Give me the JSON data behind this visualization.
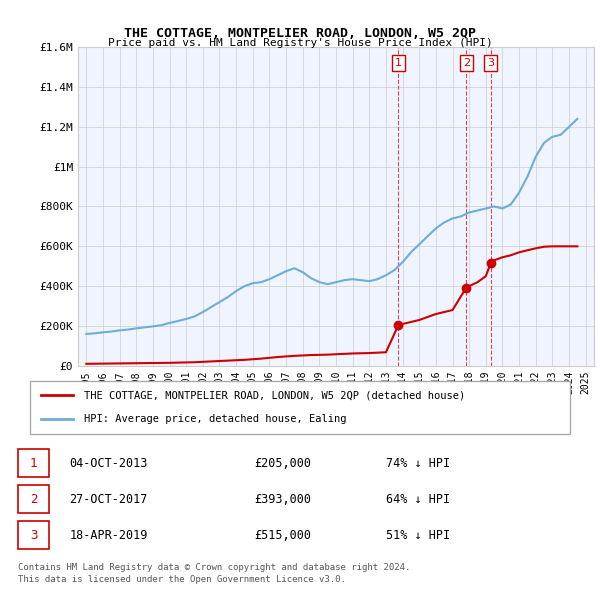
{
  "title": "THE COTTAGE, MONTPELIER ROAD, LONDON, W5 2QP",
  "subtitle": "Price paid vs. HM Land Registry's House Price Index (HPI)",
  "legend_line1": "THE COTTAGE, MONTPELIER ROAD, LONDON, W5 2QP (detached house)",
  "legend_line2": "HPI: Average price, detached house, Ealing",
  "footer1": "Contains HM Land Registry data © Crown copyright and database right 2024.",
  "footer2": "This data is licensed under the Open Government Licence v3.0.",
  "transactions": [
    {
      "num": "1",
      "date": "04-OCT-2013",
      "price": "£205,000",
      "pct": "74% ↓ HPI"
    },
    {
      "num": "2",
      "date": "27-OCT-2017",
      "price": "£393,000",
      "pct": "64% ↓ HPI"
    },
    {
      "num": "3",
      "date": "18-APR-2019",
      "price": "£515,000",
      "pct": "51% ↓ HPI"
    }
  ],
  "sale_years": [
    2013.75,
    2017.83,
    2019.29
  ],
  "sale_prices": [
    205000,
    393000,
    515000
  ],
  "hpi_color": "#6baed6",
  "price_color": "#cc0000",
  "vline_color": "#cc0000",
  "background_color": "#ffffff",
  "plot_bg_color": "#f0f4ff",
  "grid_color": "#cccccc",
  "hpi_x": [
    1995,
    1995.5,
    1996,
    1996.5,
    1997,
    1997.5,
    1998,
    1998.5,
    1999,
    1999.5,
    2000,
    2000.5,
    2001,
    2001.5,
    2002,
    2002.5,
    2003,
    2003.5,
    2004,
    2004.5,
    2005,
    2005.5,
    2006,
    2006.5,
    2007,
    2007.5,
    2008,
    2008.5,
    2009,
    2009.5,
    2010,
    2010.5,
    2011,
    2011.5,
    2012,
    2012.5,
    2013,
    2013.5,
    2014,
    2014.5,
    2015,
    2015.5,
    2016,
    2016.5,
    2017,
    2017.5,
    2018,
    2018.5,
    2019,
    2019.5,
    2020,
    2020.5,
    2021,
    2021.5,
    2022,
    2022.5,
    2023,
    2023.5,
    2024,
    2024.5
  ],
  "hpi_y": [
    160000,
    163000,
    168000,
    172000,
    178000,
    182000,
    188000,
    193000,
    198000,
    204000,
    215000,
    225000,
    235000,
    248000,
    270000,
    295000,
    320000,
    345000,
    375000,
    400000,
    415000,
    420000,
    435000,
    455000,
    475000,
    490000,
    470000,
    440000,
    420000,
    410000,
    420000,
    430000,
    435000,
    430000,
    425000,
    435000,
    455000,
    480000,
    520000,
    570000,
    610000,
    650000,
    690000,
    720000,
    740000,
    750000,
    770000,
    780000,
    790000,
    800000,
    790000,
    810000,
    870000,
    950000,
    1050000,
    1120000,
    1150000,
    1160000,
    1200000,
    1240000
  ],
  "price_x": [
    1995,
    1995.5,
    1996,
    1996.5,
    1997,
    1997.5,
    1998,
    1998.5,
    1999,
    1999.5,
    2000,
    2000.5,
    2001,
    2001.5,
    2002,
    2002.5,
    2003,
    2003.5,
    2004,
    2004.5,
    2005,
    2005.5,
    2006,
    2006.5,
    2007,
    2007.5,
    2008,
    2008.5,
    2009,
    2009.5,
    2010,
    2010.5,
    2011,
    2011.5,
    2012,
    2012.5,
    2013,
    2013.75,
    2013.75,
    2014,
    2014.5,
    2015,
    2015.5,
    2016,
    2016.5,
    2017,
    2017.83,
    2017.83,
    2018,
    2018.5,
    2019,
    2019.29,
    2019.29,
    2019.5,
    2020,
    2020.5,
    2021,
    2021.5,
    2022,
    2022.5,
    2023,
    2023.5,
    2024,
    2024.5
  ],
  "price_y": [
    10000,
    10500,
    11000,
    11500,
    12000,
    12500,
    13000,
    13500,
    14000,
    14500,
    15000,
    16000,
    17000,
    18000,
    20000,
    22000,
    24000,
    26000,
    28000,
    30000,
    33000,
    36000,
    40000,
    44000,
    47000,
    50000,
    52000,
    54000,
    55000,
    56000,
    58000,
    60000,
    62000,
    63000,
    64000,
    66000,
    68000,
    205000,
    205000,
    210000,
    220000,
    230000,
    245000,
    260000,
    270000,
    280000,
    393000,
    393000,
    400000,
    420000,
    450000,
    515000,
    515000,
    530000,
    545000,
    555000,
    570000,
    580000,
    590000,
    598000,
    600000,
    600000,
    600000,
    600000
  ],
  "ylim": [
    0,
    1600000
  ],
  "xlim": [
    1994.5,
    2025.5
  ],
  "yticks": [
    0,
    200000,
    400000,
    600000,
    800000,
    1000000,
    1200000,
    1400000,
    1600000
  ],
  "ytick_labels": [
    "£0",
    "£200K",
    "£400K",
    "£600K",
    "£800K",
    "£1M",
    "£1.2M",
    "£1.4M",
    "£1.6M"
  ],
  "xticks": [
    1995,
    1996,
    1997,
    1998,
    1999,
    2000,
    2001,
    2002,
    2003,
    2004,
    2005,
    2006,
    2007,
    2008,
    2009,
    2010,
    2011,
    2012,
    2013,
    2014,
    2015,
    2016,
    2017,
    2018,
    2019,
    2020,
    2021,
    2022,
    2023,
    2024,
    2025
  ]
}
